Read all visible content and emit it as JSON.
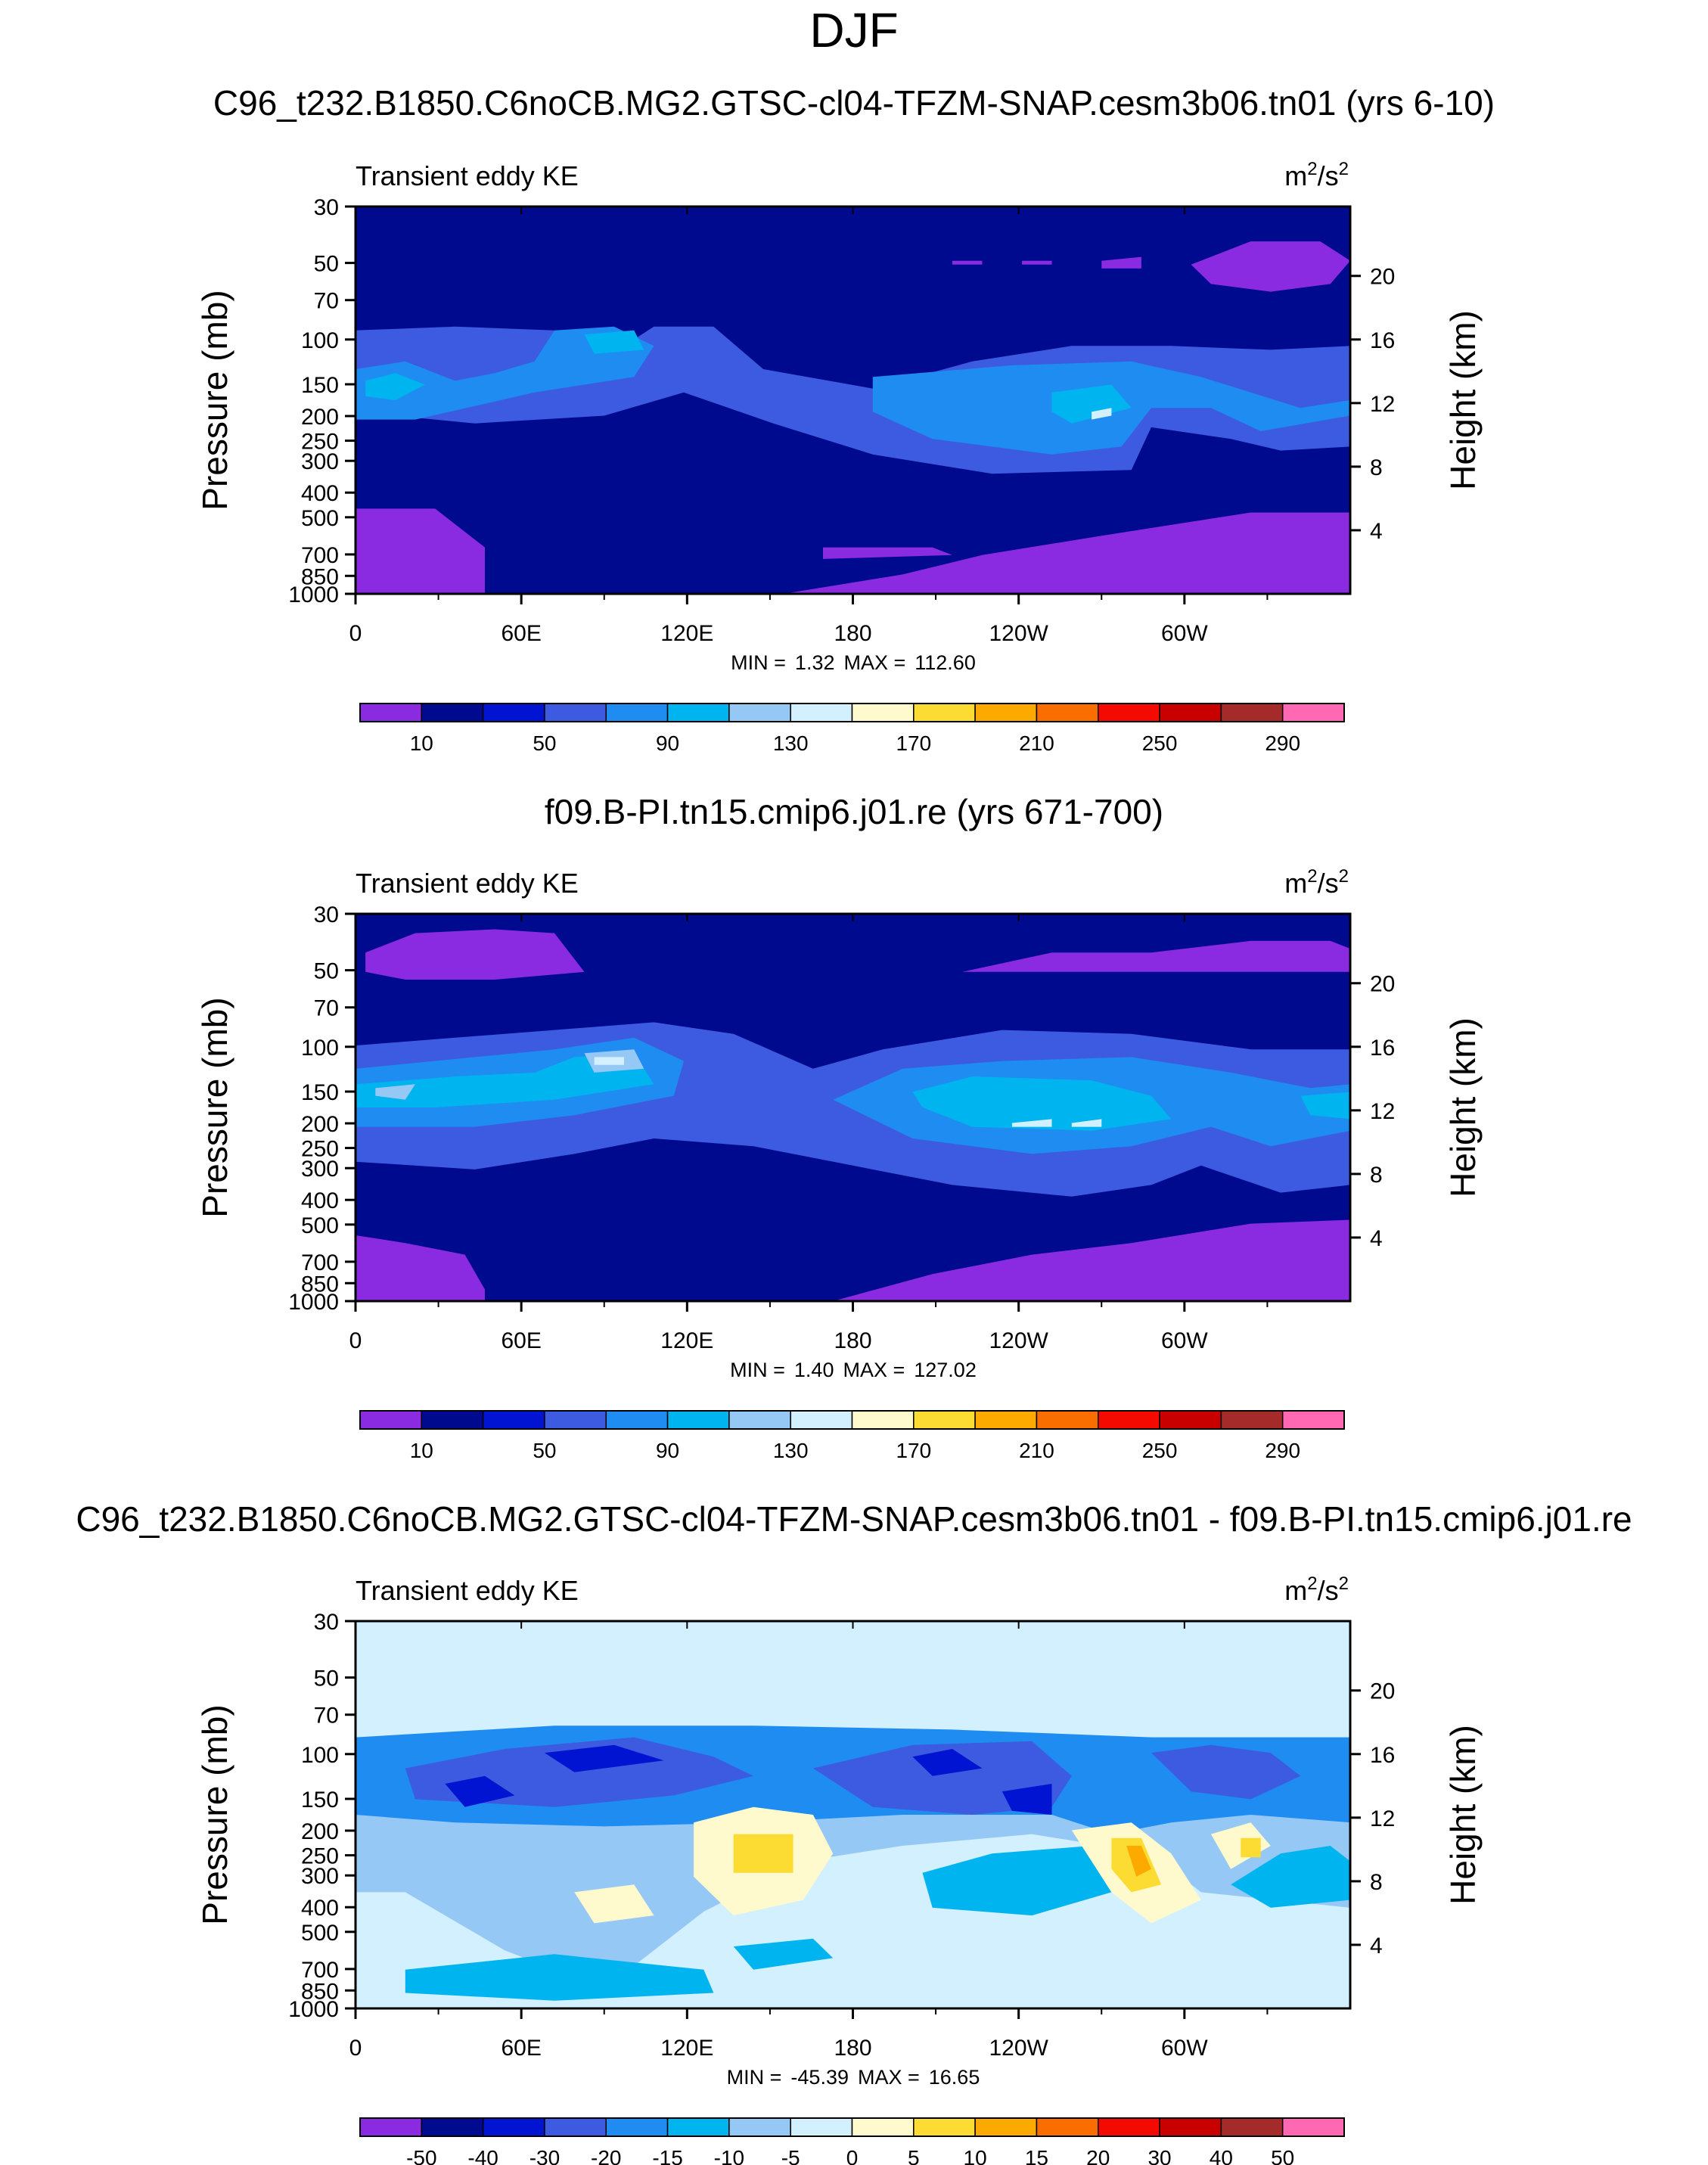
{
  "page_title": "DJF",
  "colors": {
    "pos_scale": [
      "#8a2be2",
      "#000a8e",
      "#0014d2",
      "#3d5be0",
      "#1e8cf0",
      "#00b4f0",
      "#96c8f5",
      "#d2f0ff",
      "#fffacd",
      "#fcdc32",
      "#fcaa00",
      "#fa6e00",
      "#f50a00",
      "#c80000",
      "#a52a2a",
      "#ff69b4"
    ],
    "diff_scale": [
      "#8a2be2",
      "#000a8e",
      "#0014d2",
      "#3d5be0",
      "#1e8cf0",
      "#00b4f0",
      "#96c8f5",
      "#d2f0ff",
      "#fffacd",
      "#fcdc32",
      "#fcaa00",
      "#fa6e00",
      "#f50a00",
      "#c80000",
      "#a52a2a",
      "#ff69b4"
    ]
  },
  "chart_data": [
    {
      "type": "contour",
      "title": "C96_t232.B1850.C6noCB.MG2.GTSC-cl04-TFZM-SNAP.cesm3b06.tn01 (yrs 6-10)",
      "variable": "Transient eddy KE",
      "units_base": "m",
      "units_sup1": "2",
      "units_mid": "/s",
      "units_sup2": "2",
      "ylabel_left": "Pressure (mb)",
      "ylabel_right": "Height (km)",
      "y_ticks": [
        "30",
        "50",
        "70",
        "100",
        "150",
        "200",
        "250",
        "300",
        "400",
        "500",
        "700",
        "850",
        "1000"
      ],
      "y_ticks_values": [
        30,
        50,
        70,
        100,
        150,
        200,
        250,
        300,
        400,
        500,
        700,
        850,
        1000
      ],
      "y_right_ticks": [
        "20",
        "16",
        "12",
        "8",
        "4"
      ],
      "y_right_values": [
        20,
        16,
        12,
        8,
        4
      ],
      "x_ticks": [
        "0",
        "60E",
        "120E",
        "180",
        "120W",
        "60W"
      ],
      "x_ticks_values": [
        0,
        60,
        120,
        180,
        240,
        300
      ],
      "xlim": [
        0,
        360
      ],
      "min_label": "MIN =",
      "min_value": "1.32",
      "max_label": "MAX =",
      "max_value": "112.60",
      "colorbar_labels": [
        "10",
        "50",
        "90",
        "130",
        "170",
        "210",
        "250",
        "290"
      ],
      "colorbar_levels": [
        10,
        30,
        50,
        70,
        90,
        110,
        130,
        150,
        170,
        190,
        210,
        230,
        250,
        270,
        290
      ]
    },
    {
      "type": "contour",
      "title": "f09.B-PI.tn15.cmip6.j01.re (yrs 671-700)",
      "variable": "Transient eddy KE",
      "units_base": "m",
      "units_sup1": "2",
      "units_mid": "/s",
      "units_sup2": "2",
      "ylabel_left": "Pressure (mb)",
      "ylabel_right": "Height (km)",
      "y_ticks": [
        "30",
        "50",
        "70",
        "100",
        "150",
        "200",
        "250",
        "300",
        "400",
        "500",
        "700",
        "850",
        "1000"
      ],
      "y_ticks_values": [
        30,
        50,
        70,
        100,
        150,
        200,
        250,
        300,
        400,
        500,
        700,
        850,
        1000
      ],
      "y_right_ticks": [
        "20",
        "16",
        "12",
        "8",
        "4"
      ],
      "y_right_values": [
        20,
        16,
        12,
        8,
        4
      ],
      "x_ticks": [
        "0",
        "60E",
        "120E",
        "180",
        "120W",
        "60W"
      ],
      "x_ticks_values": [
        0,
        60,
        120,
        180,
        240,
        300
      ],
      "xlim": [
        0,
        360
      ],
      "min_label": "MIN =",
      "min_value": "1.40",
      "max_label": "MAX =",
      "max_value": "127.02",
      "colorbar_labels": [
        "10",
        "50",
        "90",
        "130",
        "170",
        "210",
        "250",
        "290"
      ],
      "colorbar_levels": [
        10,
        30,
        50,
        70,
        90,
        110,
        130,
        150,
        170,
        190,
        210,
        230,
        250,
        270,
        290
      ]
    },
    {
      "type": "contour",
      "title": "C96_t232.B1850.C6noCB.MG2.GTSC-cl04-TFZM-SNAP.cesm3b06.tn01 - f09.B-PI.tn15.cmip6.j01.re",
      "variable": "Transient eddy KE",
      "units_base": "m",
      "units_sup1": "2",
      "units_mid": "/s",
      "units_sup2": "2",
      "ylabel_left": "Pressure (mb)",
      "ylabel_right": "Height (km)",
      "y_ticks": [
        "30",
        "50",
        "70",
        "100",
        "150",
        "200",
        "250",
        "300",
        "400",
        "500",
        "700",
        "850",
        "1000"
      ],
      "y_ticks_values": [
        30,
        50,
        70,
        100,
        150,
        200,
        250,
        300,
        400,
        500,
        700,
        850,
        1000
      ],
      "y_right_ticks": [
        "20",
        "16",
        "12",
        "8",
        "4"
      ],
      "y_right_values": [
        20,
        16,
        12,
        8,
        4
      ],
      "x_ticks": [
        "0",
        "60E",
        "120E",
        "180",
        "120W",
        "60W"
      ],
      "x_ticks_values": [
        0,
        60,
        120,
        180,
        240,
        300
      ],
      "xlim": [
        0,
        360
      ],
      "min_label": "MIN =",
      "min_value": "-45.39",
      "max_label": "MAX =",
      "max_value": "16.65",
      "colorbar_labels": [
        "-50",
        "-40",
        "-30",
        "-20",
        "-15",
        "-10",
        "-5",
        "0",
        "5",
        "10",
        "15",
        "20",
        "30",
        "40",
        "50"
      ],
      "colorbar_levels": [
        -50,
        -40,
        -30,
        -20,
        -15,
        -10,
        -5,
        0,
        5,
        10,
        15,
        20,
        30,
        40,
        50
      ]
    }
  ]
}
